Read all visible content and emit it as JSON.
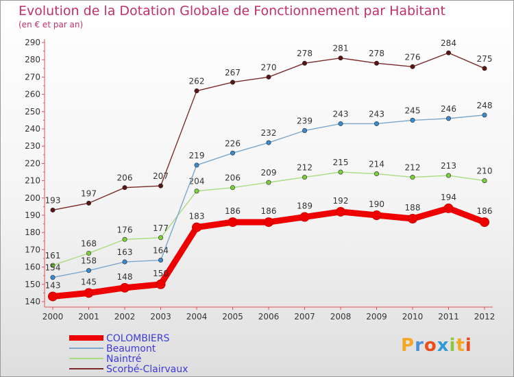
{
  "header": {
    "title": "Evolution de la Dotation Globale de Fonctionnement par Habitant",
    "subtitle": "(en € et par an)"
  },
  "logo": {
    "text": "Proxiti",
    "colors": [
      "#f5a623",
      "#4a90d9",
      "#e94e1b",
      "#2e9bd6",
      "#8dc63f",
      "#f5a623",
      "#e94e1b"
    ]
  },
  "chart_data": {
    "type": "line",
    "categories": [
      "2000",
      "2001",
      "2002",
      "2003",
      "2004",
      "2005",
      "2006",
      "2007",
      "2008",
      "2009",
      "2010",
      "2011",
      "2012"
    ],
    "ylim": [
      140,
      290
    ],
    "yticks": [
      140,
      150,
      160,
      170,
      180,
      190,
      200,
      210,
      220,
      230,
      240,
      250,
      260,
      270,
      280,
      290
    ],
    "grid": false,
    "legend_position": "bottom-left",
    "series": [
      {
        "name": "Scorbé-Clairvaux",
        "color": "#7a2a2a",
        "marker": "#5a1414",
        "emphasis": false,
        "values": [
          193,
          197,
          206,
          207,
          262,
          267,
          270,
          278,
          281,
          278,
          276,
          284,
          275
        ]
      },
      {
        "name": "Naintré",
        "color": "#a8dc80",
        "marker": "#7ccf3c",
        "emphasis": false,
        "values": [
          161,
          168,
          176,
          177,
          204,
          206,
          209,
          212,
          215,
          214,
          212,
          213,
          210
        ]
      },
      {
        "name": "Beaumont",
        "color": "#7aa6cc",
        "marker": "#3a8ad0",
        "emphasis": false,
        "values": [
          154,
          158,
          163,
          164,
          219,
          226,
          232,
          239,
          243,
          243,
          245,
          246,
          248
        ]
      },
      {
        "name": "COLOMBIERS",
        "color": "#ee0000",
        "marker": "#ee0000",
        "emphasis": true,
        "values": [
          143,
          145,
          148,
          150,
          183,
          186,
          186,
          189,
          192,
          190,
          188,
          194,
          186
        ]
      }
    ],
    "legend_order": [
      "COLOMBIERS",
      "Beaumont",
      "Naintré",
      "Scorbé-Clairvaux"
    ]
  }
}
